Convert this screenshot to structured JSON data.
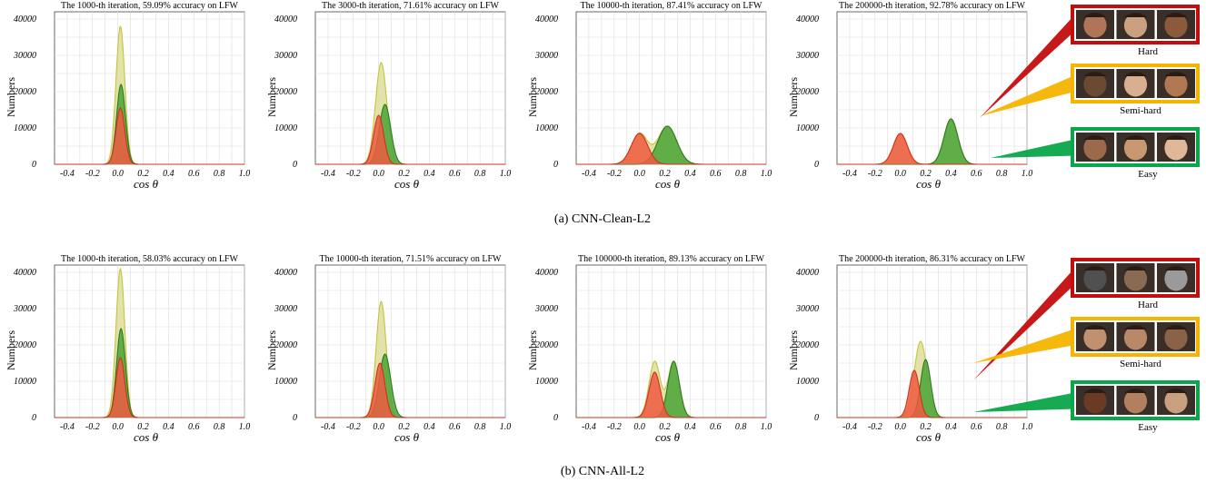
{
  "chart_data": [
    {
      "type": "area",
      "row": 0,
      "col": 0,
      "title": "The 1000-th iteration, 59.09% accuracy on LFW",
      "xlabel": "cos θ",
      "ylabel": "Numbers",
      "xlim": [
        -0.5,
        1.0
      ],
      "ylim": [
        0,
        42000
      ],
      "xticks": [
        "-0.4",
        "-0.2",
        "0.0",
        "0.2",
        "0.4",
        "0.6",
        "0.8",
        "1.0"
      ],
      "yticks": [
        "0",
        "10000",
        "20000",
        "30000",
        "40000"
      ],
      "grid": true,
      "series": [
        {
          "color": "#dede9a",
          "line": "#c4c440",
          "peaks": [
            {
              "mu": 0.02,
              "sigma": 0.035,
              "height": 38000
            }
          ]
        },
        {
          "color": "#4aa438",
          "line": "#2d7a1e",
          "peaks": [
            {
              "mu": 0.025,
              "sigma": 0.035,
              "height": 22000
            }
          ]
        },
        {
          "color": "#ef5a3f",
          "line": "#cc3322",
          "peaks": [
            {
              "mu": 0.02,
              "sigma": 0.035,
              "height": 15500
            }
          ]
        }
      ]
    },
    {
      "type": "area",
      "row": 0,
      "col": 1,
      "title": "The 3000-th iteration, 71.61% accuracy on LFW",
      "xlabel": "cos θ",
      "ylabel": "Numbers",
      "xlim": [
        -0.5,
        1.0
      ],
      "ylim": [
        0,
        42000
      ],
      "xticks": [
        "-0.4",
        "-0.2",
        "0.0",
        "0.2",
        "0.4",
        "0.6",
        "0.8",
        "1.0"
      ],
      "yticks": [
        "0",
        "10000",
        "20000",
        "30000",
        "40000"
      ],
      "grid": true,
      "series": [
        {
          "color": "#dede9a",
          "line": "#c4c440",
          "peaks": [
            {
              "mu": 0.02,
              "sigma": 0.045,
              "height": 28000
            }
          ]
        },
        {
          "color": "#4aa438",
          "line": "#2d7a1e",
          "peaks": [
            {
              "mu": 0.05,
              "sigma": 0.045,
              "height": 16500
            }
          ]
        },
        {
          "color": "#ef5a3f",
          "line": "#cc3322",
          "peaks": [
            {
              "mu": 0.0,
              "sigma": 0.04,
              "height": 13500
            }
          ]
        }
      ]
    },
    {
      "type": "area",
      "row": 0,
      "col": 2,
      "title": "The 10000-th iteration, 87.41% accuracy on LFW",
      "xlabel": "cos θ",
      "ylabel": "Numbers",
      "xlim": [
        -0.5,
        1.0
      ],
      "ylim": [
        0,
        42000
      ],
      "xticks": [
        "-0.4",
        "-0.2",
        "0.0",
        "0.2",
        "0.4",
        "0.6",
        "0.8",
        "1.0"
      ],
      "yticks": [
        "0",
        "10000",
        "20000",
        "30000",
        "40000"
      ],
      "grid": true,
      "series": [
        {
          "color": "#dede9a",
          "line": "#c4c440",
          "peaks": [
            {
              "mu": 0.0,
              "sigma": 0.065,
              "height": 8500
            },
            {
              "mu": 0.22,
              "sigma": 0.075,
              "height": 10500
            }
          ]
        },
        {
          "color": "#4aa438",
          "line": "#2d7a1e",
          "peaks": [
            {
              "mu": 0.22,
              "sigma": 0.075,
              "height": 10500
            }
          ]
        },
        {
          "color": "#ef5a3f",
          "line": "#cc3322",
          "peaks": [
            {
              "mu": 0.0,
              "sigma": 0.065,
              "height": 8500
            }
          ]
        }
      ]
    },
    {
      "type": "area",
      "row": 0,
      "col": 3,
      "title": "The 200000-th iteration, 92.78% accuracy on LFW",
      "xlabel": "cos θ",
      "ylabel": "Numbers",
      "xlim": [
        -0.5,
        1.0
      ],
      "ylim": [
        0,
        42000
      ],
      "xticks": [
        "-0.4",
        "-0.2",
        "0.0",
        "0.2",
        "0.4",
        "0.6",
        "0.8",
        "1.0"
      ],
      "yticks": [
        "0",
        "10000",
        "20000",
        "30000",
        "40000"
      ],
      "grid": true,
      "series": [
        {
          "color": "#dede9a",
          "line": "#c4c440",
          "peaks": [
            {
              "mu": 0.0,
              "sigma": 0.055,
              "height": 8500
            },
            {
              "mu": 0.4,
              "sigma": 0.055,
              "height": 12500
            }
          ]
        },
        {
          "color": "#4aa438",
          "line": "#2d7a1e",
          "peaks": [
            {
              "mu": 0.4,
              "sigma": 0.055,
              "height": 12500
            }
          ]
        },
        {
          "color": "#ef5a3f",
          "line": "#cc3322",
          "peaks": [
            {
              "mu": 0.0,
              "sigma": 0.055,
              "height": 8500
            }
          ]
        }
      ]
    },
    {
      "type": "area",
      "row": 1,
      "col": 0,
      "title": "The 1000-th iteration, 58.03% accuracy on LFW",
      "xlabel": "cos θ",
      "ylabel": "Numbers",
      "xlim": [
        -0.5,
        1.0
      ],
      "ylim": [
        0,
        42000
      ],
      "xticks": [
        "-0.4",
        "-0.2",
        "0.0",
        "0.2",
        "0.4",
        "0.6",
        "0.8",
        "1.0"
      ],
      "yticks": [
        "0",
        "10000",
        "20000",
        "30000",
        "40000"
      ],
      "grid": true,
      "series": [
        {
          "color": "#dede9a",
          "line": "#c4c440",
          "peaks": [
            {
              "mu": 0.02,
              "sigma": 0.035,
              "height": 41000
            }
          ]
        },
        {
          "color": "#4aa438",
          "line": "#2d7a1e",
          "peaks": [
            {
              "mu": 0.025,
              "sigma": 0.035,
              "height": 24500
            }
          ]
        },
        {
          "color": "#ef5a3f",
          "line": "#cc3322",
          "peaks": [
            {
              "mu": 0.02,
              "sigma": 0.035,
              "height": 16500
            }
          ]
        }
      ]
    },
    {
      "type": "area",
      "row": 1,
      "col": 1,
      "title": "The 10000-th iteration, 71.51% accuracy on LFW",
      "xlabel": "cos θ",
      "ylabel": "Numbers",
      "xlim": [
        -0.5,
        1.0
      ],
      "ylim": [
        0,
        42000
      ],
      "xticks": [
        "-0.4",
        "-0.2",
        "0.0",
        "0.2",
        "0.4",
        "0.6",
        "0.8",
        "1.0"
      ],
      "yticks": [
        "0",
        "10000",
        "20000",
        "30000",
        "40000"
      ],
      "grid": true,
      "series": [
        {
          "color": "#dede9a",
          "line": "#c4c440",
          "peaks": [
            {
              "mu": 0.02,
              "sigma": 0.04,
              "height": 32000
            }
          ]
        },
        {
          "color": "#4aa438",
          "line": "#2d7a1e",
          "peaks": [
            {
              "mu": 0.05,
              "sigma": 0.045,
              "height": 17500
            }
          ]
        },
        {
          "color": "#ef5a3f",
          "line": "#cc3322",
          "peaks": [
            {
              "mu": 0.01,
              "sigma": 0.04,
              "height": 15000
            }
          ]
        }
      ]
    },
    {
      "type": "area",
      "row": 1,
      "col": 2,
      "title": "The 100000-th iteration, 89.13% accuracy on LFW",
      "xlabel": "cos θ",
      "ylabel": "Numbers",
      "xlim": [
        -0.5,
        1.0
      ],
      "ylim": [
        0,
        42000
      ],
      "xticks": [
        "-0.4",
        "-0.2",
        "0.0",
        "0.2",
        "0.4",
        "0.6",
        "0.8",
        "1.0"
      ],
      "yticks": [
        "0",
        "10000",
        "20000",
        "30000",
        "40000"
      ],
      "grid": true,
      "series": [
        {
          "color": "#dede9a",
          "line": "#c4c440",
          "peaks": [
            {
              "mu": 0.12,
              "sigma": 0.045,
              "height": 15500
            },
            {
              "mu": 0.27,
              "sigma": 0.045,
              "height": 15500
            }
          ]
        },
        {
          "color": "#4aa438",
          "line": "#2d7a1e",
          "peaks": [
            {
              "mu": 0.27,
              "sigma": 0.045,
              "height": 15500
            }
          ]
        },
        {
          "color": "#ef5a3f",
          "line": "#cc3322",
          "peaks": [
            {
              "mu": 0.12,
              "sigma": 0.045,
              "height": 12500
            }
          ]
        }
      ]
    },
    {
      "type": "area",
      "row": 1,
      "col": 3,
      "title": "The 200000-th iteration, 86.31% accuracy on LFW",
      "xlabel": "cos θ",
      "ylabel": "Numbers",
      "xlim": [
        -0.5,
        1.0
      ],
      "ylim": [
        0,
        42000
      ],
      "xticks": [
        "-0.4",
        "-0.2",
        "0.0",
        "0.2",
        "0.4",
        "0.6",
        "0.8",
        "1.0"
      ],
      "yticks": [
        "0",
        "10000",
        "20000",
        "30000",
        "40000"
      ],
      "grid": true,
      "series": [
        {
          "color": "#dede9a",
          "line": "#c4c440",
          "peaks": [
            {
              "mu": 0.16,
              "sigma": 0.05,
              "height": 21000
            }
          ]
        },
        {
          "color": "#4aa438",
          "line": "#2d7a1e",
          "peaks": [
            {
              "mu": 0.2,
              "sigma": 0.04,
              "height": 16000
            }
          ]
        },
        {
          "color": "#ef5a3f",
          "line": "#cc3322",
          "peaks": [
            {
              "mu": 0.11,
              "sigma": 0.04,
              "height": 13000
            }
          ]
        }
      ]
    }
  ],
  "captions": [
    "(a)  CNN-Clean-L2",
    "(b)  CNN-All-L2"
  ],
  "callouts": [
    {
      "row": 0,
      "boxes": [
        {
          "label": "Hard",
          "color": "#c40d0d"
        },
        {
          "label": "Semi-hard",
          "color": "#f5b400"
        },
        {
          "label": "Easy",
          "color": "#0aa64a"
        }
      ]
    },
    {
      "row": 1,
      "boxes": [
        {
          "label": "Hard",
          "color": "#c40d0d"
        },
        {
          "label": "Semi-hard",
          "color": "#f5b400"
        },
        {
          "label": "Easy",
          "color": "#0aa64a"
        }
      ]
    }
  ],
  "face_tones": [
    [
      "#b07458",
      "#caa080",
      "#8a5a3a"
    ],
    [
      "#6a4a32",
      "#d8b090",
      "#b07850"
    ],
    [
      "#9a6a4a",
      "#c89870",
      "#e0b898"
    ],
    [
      "#505050",
      "#8a6a52",
      "#9a9a9a"
    ],
    [
      "#c09070",
      "#b88868",
      "#8a6248"
    ],
    [
      "#6a3a24",
      "#b08060",
      "#c8a080"
    ]
  ]
}
